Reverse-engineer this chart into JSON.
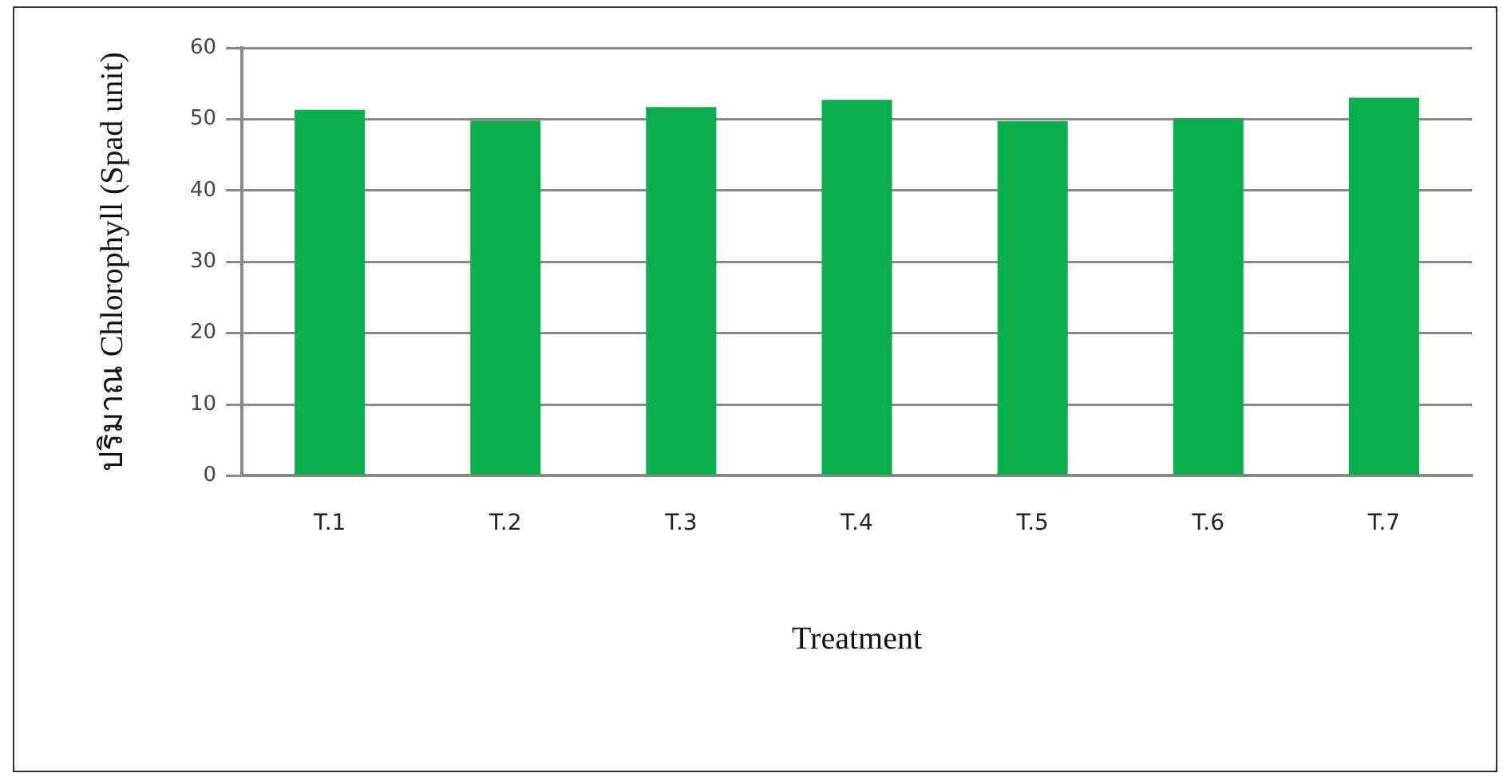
{
  "chart_data": {
    "type": "bar",
    "xlabel": "Treatment",
    "ylabel": "ปริมาณ Chlorophyll (Spad unit)",
    "categories": [
      "T.1",
      "T.2",
      "T.3",
      "T.4",
      "T.5",
      "T.6",
      "T.7"
    ],
    "values": [
      51.3,
      49.8,
      51.7,
      52.7,
      49.7,
      50.1,
      53.0
    ],
    "color": "#0bad4d",
    "ylim": [
      0,
      60
    ],
    "yticks": [
      0,
      10,
      20,
      30,
      40,
      50,
      60
    ],
    "grid": "y",
    "legend": false
  }
}
